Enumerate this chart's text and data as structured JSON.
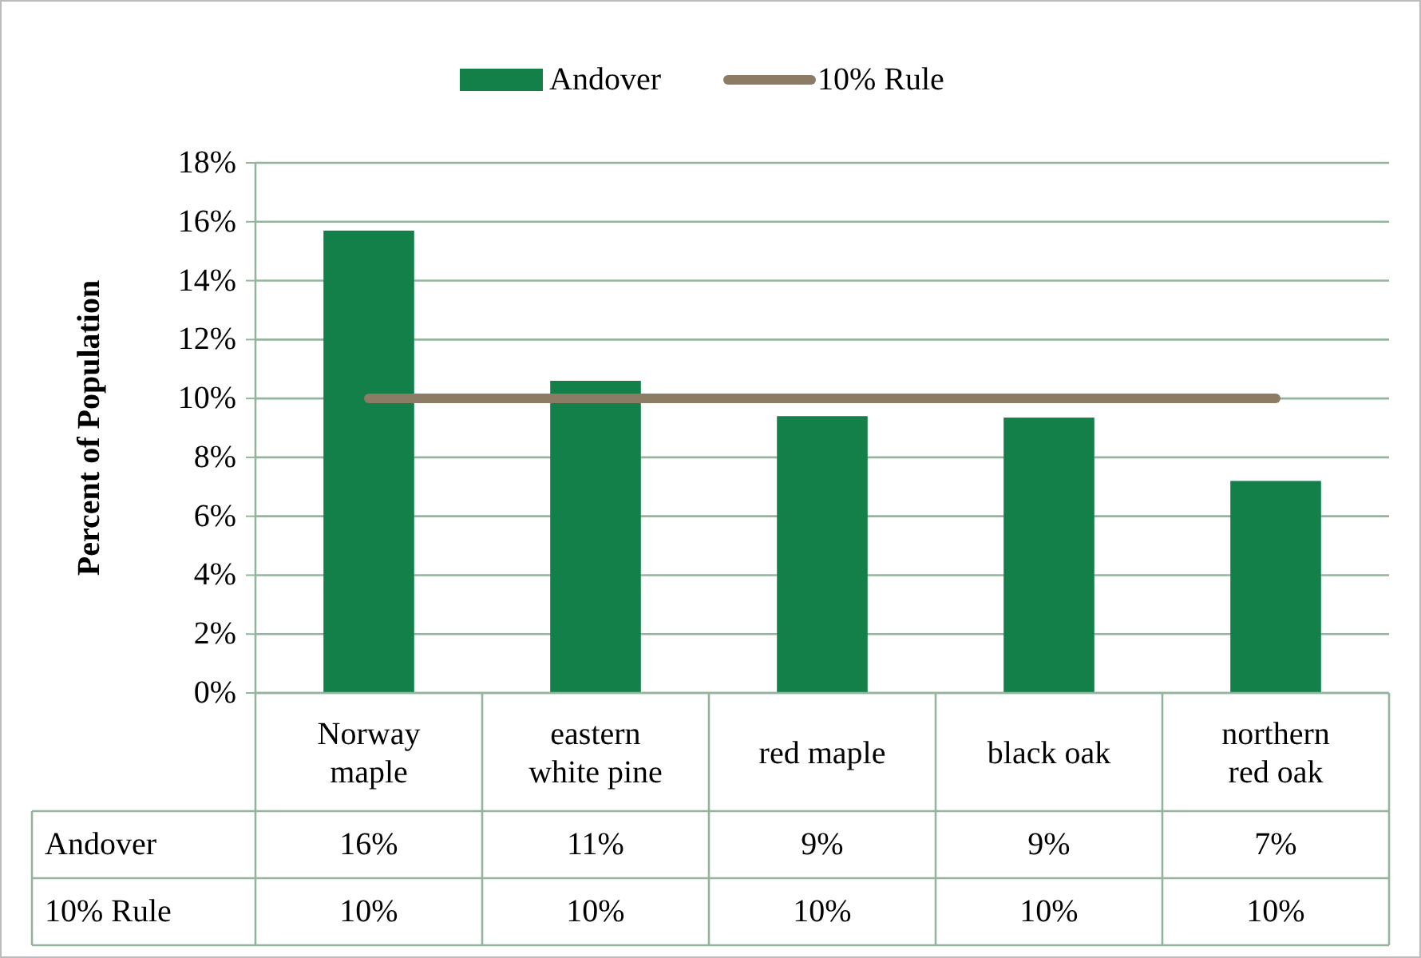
{
  "chart_data": {
    "type": "bar",
    "ylabel": "Percent of Population",
    "categories": [
      "Norway maple",
      "eastern white pine",
      "red maple",
      "black oak",
      "northern red oak"
    ],
    "series": [
      {
        "name": "Andover",
        "color": "#13804a",
        "values": [
          15.7,
          10.6,
          9.4,
          9.35,
          7.2
        ],
        "value_labels": [
          "16%",
          "11%",
          "9%",
          "9%",
          "7%"
        ]
      },
      {
        "name": "10% Rule",
        "type": "line",
        "color": "#8c7b65",
        "values": [
          10,
          10,
          10,
          10,
          10
        ],
        "value_labels": [
          "10%",
          "10%",
          "10%",
          "10%",
          "10%"
        ]
      }
    ],
    "ylim": [
      0,
      18
    ],
    "yticks": [
      {
        "value": 0,
        "label": "0%"
      },
      {
        "value": 2,
        "label": "2%"
      },
      {
        "value": 4,
        "label": "4%"
      },
      {
        "value": 6,
        "label": "6%"
      },
      {
        "value": 8,
        "label": "8%"
      },
      {
        "value": 10,
        "label": "10%"
      },
      {
        "value": 12,
        "label": "12%"
      },
      {
        "value": 14,
        "label": "14%"
      },
      {
        "value": 16,
        "label": "16%"
      },
      {
        "value": 18,
        "label": "18%"
      }
    ],
    "grid": "y",
    "legend": "top",
    "marker": "none"
  }
}
